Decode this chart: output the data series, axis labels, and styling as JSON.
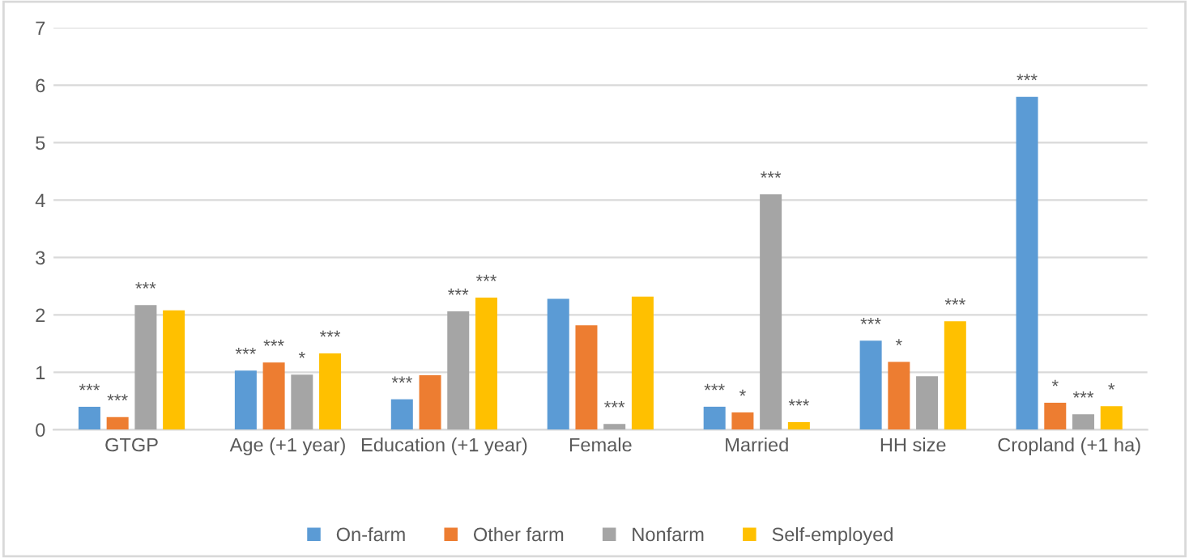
{
  "chart_data": {
    "type": "bar",
    "categories": [
      "GTGP",
      "Age (+1 year)",
      "Education (+1 year)",
      "Female",
      "Married",
      "HH size",
      "Cropland (+1 ha)"
    ],
    "series": [
      {
        "name": "On-farm",
        "color": "#5b9bd5",
        "values": [
          0.4,
          1.03,
          0.53,
          2.28,
          0.4,
          1.55,
          5.8
        ],
        "value_labels": [
          "***",
          "***",
          "***",
          null,
          "***",
          "***",
          "***"
        ]
      },
      {
        "name": "Other farm",
        "color": "#ed7d31",
        "values": [
          0.22,
          1.17,
          0.95,
          1.82,
          0.3,
          1.18,
          0.47
        ],
        "value_labels": [
          "***",
          "***",
          null,
          null,
          "*",
          "*",
          "*"
        ]
      },
      {
        "name": "Nonfarm",
        "color": "#a5a5a5",
        "values": [
          2.17,
          0.96,
          2.06,
          0.1,
          4.1,
          0.93,
          0.27
        ],
        "value_labels": [
          "***",
          "*",
          "***",
          "***",
          "***",
          null,
          "***"
        ]
      },
      {
        "name": "Self-employed",
        "color": "#ffc000",
        "values": [
          2.08,
          1.33,
          2.3,
          2.32,
          0.13,
          1.89,
          0.41
        ],
        "value_labels": [
          null,
          "***",
          "***",
          null,
          "***",
          "***",
          "*"
        ]
      }
    ],
    "ylim": [
      0,
      7
    ],
    "yticks": [
      0,
      1,
      2,
      3,
      4,
      5,
      6,
      7
    ],
    "grid": "y",
    "legend": "bottom"
  }
}
